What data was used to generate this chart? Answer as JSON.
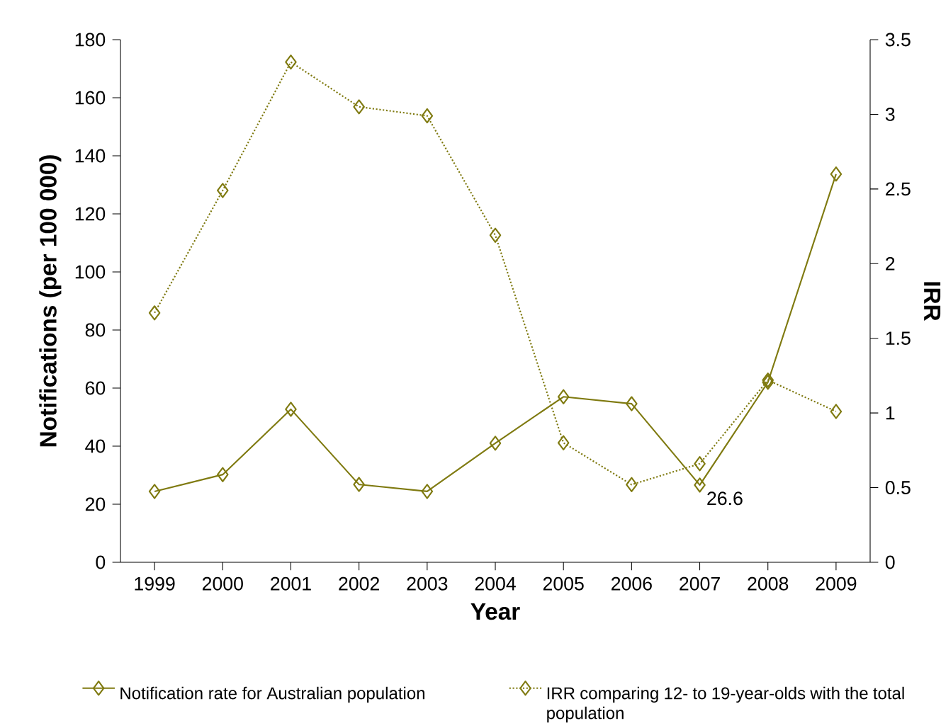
{
  "chart_data": {
    "type": "line",
    "xlabel": "Year",
    "ylabel": "Notifications (per 100 000)",
    "y2label": "IRR",
    "categories": [
      "1999",
      "2000",
      "2001",
      "2002",
      "2003",
      "2004",
      "2005",
      "2006",
      "2007",
      "2008",
      "2009"
    ],
    "series": [
      {
        "name": "Notification rate for Australian population",
        "color": "#7f7a10",
        "line_style": "solid",
        "values": [
          24.4,
          30.2,
          52.7,
          26.8,
          24.4,
          41,
          57,
          54.6,
          26.6,
          62,
          133.7
        ]
      },
      {
        "name": "IRR comparing 12- to 19-year-olds with the total population",
        "color": "#7f7a10",
        "line_style": "dotted",
        "axis": "y2",
        "values": [
          1.67,
          2.49,
          3.35,
          3.05,
          2.99,
          2.19,
          0.8,
          0.52,
          0.66,
          1.22,
          1.01
        ]
      }
    ],
    "ylim": [
      0,
      180
    ],
    "yticks": [
      0,
      20,
      40,
      60,
      80,
      100,
      120,
      140,
      160,
      180
    ],
    "y2lim": [
      0,
      3.5
    ],
    "y2ticks": [
      0,
      0.5,
      1,
      1.5,
      2,
      2.5,
      3,
      3.5
    ],
    "annotations": [
      {
        "text": "26.6",
        "x": "2007",
        "y": 26.6
      }
    ],
    "marker": "diamond",
    "legend": "bottom",
    "grid": false
  }
}
